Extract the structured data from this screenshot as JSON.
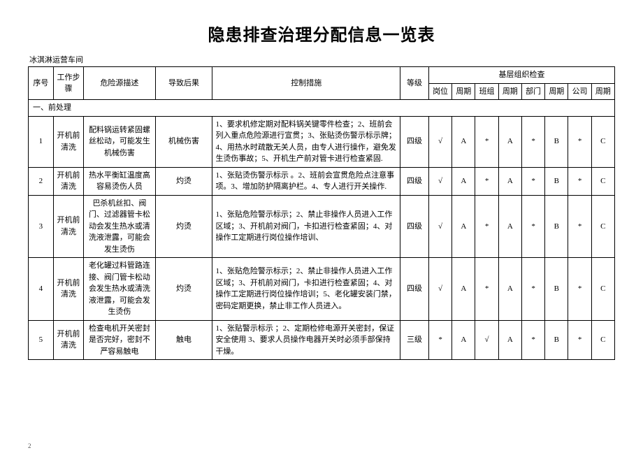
{
  "title": "隐患排查治理分配信息一览表",
  "workshop": "冰淇淋运营车间",
  "page_number": "2",
  "header": {
    "seq": "序号",
    "step": "工作步骤",
    "source": "危险源描述",
    "consequence": "导致后果",
    "control": "控制措施",
    "level": "等级",
    "group_title": "基层组织检查",
    "cols": [
      "岗位",
      "周期",
      "班组",
      "周期",
      "部门",
      "周期",
      "公司",
      "周期"
    ]
  },
  "section": "一、前处理",
  "rows": [
    {
      "seq": "1",
      "step": "开机前清洗",
      "source": "配料锅运转紧固螺丝松动，可能发生机械伤害",
      "consequence": "机械伤害",
      "control": "1、要求机修定期对配料锅关键零件检查；2、班前会列入重点危险源进行宣贯；3、张贴烫伤警示标示牌；4、用热水时疏散无关人员，由专人进行操作，避免发生烫伤事故；5、开机生产前对管卡进行检查紧固.",
      "level": "四级",
      "checks": [
        "√",
        "A",
        "*",
        "A",
        "*",
        "B",
        "*",
        "C"
      ]
    },
    {
      "seq": "2",
      "step": "开机前清洗",
      "source": "热水平衡缸温度高容易烫伤人员",
      "consequence": "灼烫",
      "control": "1、张贴烫伤警示标示 。2、班前会宣贯危险点注意事项。3、增加防护隔离护栏。4、专人进行开关操作.",
      "level": "四级",
      "checks": [
        "√",
        "A",
        "*",
        "A",
        "*",
        "B",
        "*",
        "C"
      ]
    },
    {
      "seq": "3",
      "step": "开机前清洗",
      "source": "巴杀机丝扣、阀门、过滤器管卡松动会发生热水或清洗液泄露，可能会发生烫伤",
      "consequence": "灼烫",
      "control": "1、张贴危险警示标示；2、禁止非操作人员进入工作区域；3、开机前对阀门，卡扣进行检查紧固；4、对操作工定期进行岗位操作培训、",
      "level": "四级",
      "checks": [
        "√",
        "A",
        "*",
        "A",
        "*",
        "B",
        "*",
        "C"
      ]
    },
    {
      "seq": "4",
      "step": "开机前清洗",
      "source": "老化罐过料管路连接、阀门管卡松动会发生热水或清洗液泄露，可能会发生烫伤",
      "consequence": "灼烫",
      "control": "1、张贴危险警示标示；2、禁止非操作人员进入工作区域；3、开机前对阀门，卡扣进行检查紧固；4、对操作工定期进行岗位操作培训；5、老化罐安装门禁，密码定期更换，禁止非工作人员进入。",
      "level": "四级",
      "checks": [
        "√",
        "A",
        "*",
        "A",
        "*",
        "B",
        "*",
        "C"
      ]
    },
    {
      "seq": "5",
      "step": "开机前清洗",
      "source": "检查电机开关密封是否完好，密封不严容易触电",
      "consequence": "触电",
      "control": "1、张贴警示标示 ；2、定期检修电源开关密封，保证安全使用 3、要求人员操作电器开关时必须手部保持干燥。",
      "level": "三级",
      "checks": [
        "*",
        "A",
        "√",
        "A",
        "*",
        "B",
        "*",
        "C"
      ]
    }
  ]
}
